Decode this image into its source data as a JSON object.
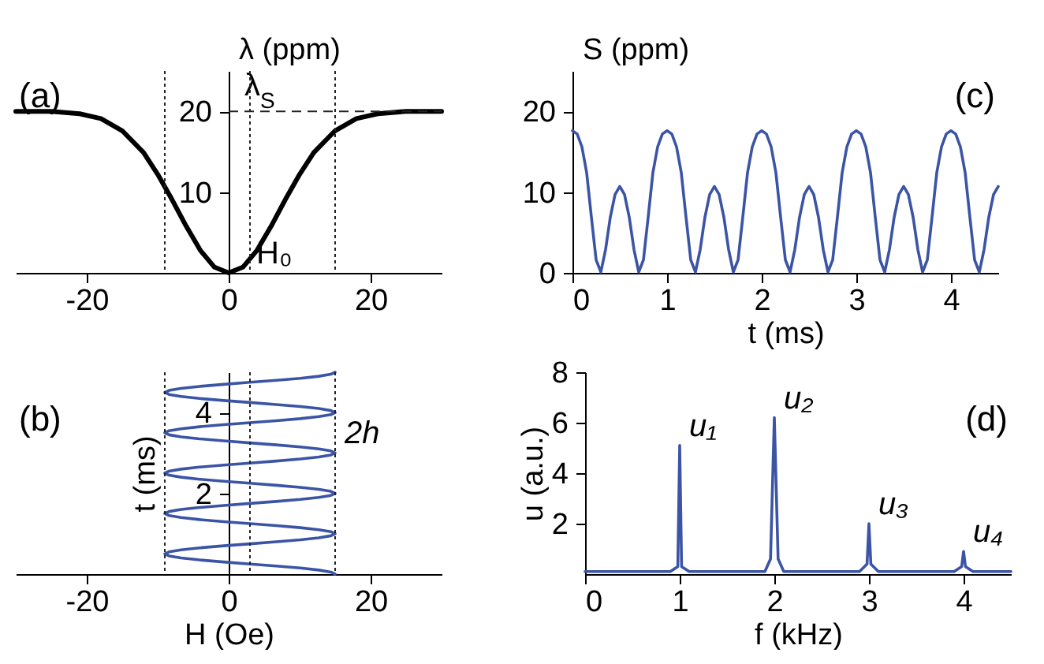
{
  "chart_data": [
    {
      "type": "line",
      "title": "(a)",
      "ylabel": "λ (ppm)",
      "xlim": [
        -30,
        30
      ],
      "ylim": [
        0,
        25
      ],
      "xticks": [
        -20,
        0,
        20
      ],
      "yticks": [
        10,
        20
      ],
      "x": [
        -30,
        -25,
        -21,
        -18,
        -15,
        -12,
        -10,
        -8,
        -6,
        -4,
        -2,
        0,
        2,
        4,
        6,
        8,
        10,
        12,
        15,
        18,
        21,
        25,
        30
      ],
      "series": [
        {
          "color": "#000000",
          "values": [
            20,
            20,
            19.7,
            19.1,
            17.6,
            14.9,
            12.2,
            9.1,
            5.8,
            2.8,
            0.7,
            0,
            0.7,
            2.8,
            5.8,
            9.1,
            12.2,
            14.9,
            17.6,
            19.1,
            19.7,
            20,
            20
          ]
        }
      ],
      "ref_lines": [
        {
          "axis": "y",
          "value": 20,
          "label": "λ$_{S}$",
          "line_style": "dashed"
        },
        {
          "axis": "x",
          "value": -9,
          "line_style": "dotted"
        },
        {
          "axis": "x",
          "value": 3,
          "label": "H₀",
          "line_style": "dotted"
        },
        {
          "axis": "x",
          "value": 15,
          "line_style": "dotted"
        }
      ]
    },
    {
      "type": "line",
      "title": "(c)",
      "xlabel": "t (ms)",
      "ylabel": "S (ppm)",
      "xlim": [
        0,
        4.5
      ],
      "ylim": [
        0,
        25
      ],
      "xticks": [
        0,
        1,
        2,
        3,
        4
      ],
      "yticks": [
        0,
        10,
        20
      ],
      "x": [
        0,
        0.05,
        0.1,
        0.15,
        0.2,
        0.25,
        0.3,
        0.35,
        0.4,
        0.45,
        0.5,
        0.55,
        0.6,
        0.65,
        0.7,
        0.75,
        0.8,
        0.85,
        0.9,
        0.95,
        1,
        1.05,
        1.1,
        1.15,
        1.2,
        1.25,
        1.3,
        1.35,
        1.4,
        1.45,
        1.5,
        1.55,
        1.6,
        1.65,
        1.7,
        1.75,
        1.8,
        1.85,
        1.9,
        1.95,
        2,
        2.05,
        2.1,
        2.15,
        2.2,
        2.25,
        2.3,
        2.35,
        2.4,
        2.45,
        2.5,
        2.55,
        2.6,
        2.65,
        2.7,
        2.75,
        2.8,
        2.85,
        2.9,
        2.95,
        3,
        3.05,
        3.1,
        3.15,
        3.2,
        3.25,
        3.3,
        3.35,
        3.4,
        3.45,
        3.5,
        3.55,
        3.6,
        3.65,
        3.7,
        3.75,
        3.8,
        3.85,
        3.9,
        3.95,
        4,
        4.05,
        4.1,
        4.15,
        4.2,
        4.25,
        4.3,
        4.35,
        4.4,
        4.45,
        4.5
      ],
      "series": [
        {
          "color": "#3b54a5",
          "values": [
            17.6,
            17.2,
            15.6,
            12.4,
            6.9,
            1.6,
            0.1,
            2.9,
            6.9,
            9.7,
            10.7,
            9.7,
            6.9,
            2.9,
            0.1,
            1.6,
            6.9,
            12.4,
            15.6,
            17.2,
            17.6,
            17.2,
            15.6,
            12.4,
            6.9,
            1.6,
            0.1,
            2.9,
            6.9,
            9.7,
            10.7,
            9.7,
            6.9,
            2.9,
            0.1,
            1.6,
            6.9,
            12.4,
            15.6,
            17.2,
            17.6,
            17.2,
            15.6,
            12.4,
            6.9,
            1.6,
            0.1,
            2.9,
            6.9,
            9.7,
            10.7,
            9.7,
            6.9,
            2.9,
            0.1,
            1.6,
            6.9,
            12.4,
            15.6,
            17.2,
            17.6,
            17.2,
            15.6,
            12.4,
            6.9,
            1.6,
            0.1,
            2.9,
            6.9,
            9.7,
            10.7,
            9.7,
            6.9,
            2.9,
            0.1,
            1.6,
            6.9,
            12.4,
            15.6,
            17.2,
            17.6,
            17.2,
            15.6,
            12.4,
            6.9,
            1.6,
            0.1,
            2.9,
            6.9,
            9.7,
            10.7
          ]
        }
      ]
    },
    {
      "type": "line",
      "title": "(b)",
      "xlabel": "H (Oe)",
      "ylabel": "t (ms)",
      "xlim": [
        -30,
        30
      ],
      "ylim": [
        0,
        5
      ],
      "xticks": [
        -20,
        0,
        20
      ],
      "yticks": [
        2,
        4
      ],
      "x": [
        15,
        14.4,
        12.7,
        10.1,
        6.7,
        3,
        -0.7,
        -4.1,
        -6.7,
        -8.4,
        -9,
        -8.4,
        -6.7,
        -4.1,
        -0.7,
        3,
        6.7,
        10.1,
        12.7,
        14.4,
        15,
        14.4,
        12.7,
        10.1,
        6.7,
        3,
        -0.7,
        -4.1,
        -6.7,
        -8.4,
        -9,
        -8.4,
        -6.7,
        -4.1,
        -0.7,
        3,
        6.7,
        10.1,
        12.7,
        14.4,
        15,
        14.4,
        12.7,
        10.1,
        6.7,
        3,
        -0.7,
        -4.1,
        -6.7,
        -8.4,
        -9,
        -8.4,
        -6.7,
        -4.1,
        -0.7,
        3,
        6.7,
        10.1,
        12.7,
        14.4,
        15,
        14.4,
        12.7,
        10.1,
        6.7,
        3,
        -0.7,
        -4.1,
        -6.7,
        -8.4,
        -9,
        -8.4,
        -6.7,
        -4.1,
        -0.7,
        3,
        6.7,
        10.1,
        12.7,
        14.4,
        15,
        14.4,
        12.7,
        10.1,
        6.7,
        3,
        -0.7,
        -4.1,
        -6.7,
        -8.4,
        -9,
        -8.4,
        -6.7,
        -4.1,
        -0.7,
        3,
        6.7,
        10.1,
        12.7,
        14.4,
        15
      ],
      "series": [
        {
          "color": "#3b54a5",
          "values": [
            0,
            0.05,
            0.1,
            0.15,
            0.2,
            0.25,
            0.3,
            0.35,
            0.4,
            0.45,
            0.5,
            0.55,
            0.6,
            0.65,
            0.7,
            0.75,
            0.8,
            0.85,
            0.9,
            0.95,
            1,
            1.05,
            1.1,
            1.15,
            1.2,
            1.25,
            1.3,
            1.35,
            1.4,
            1.45,
            1.5,
            1.55,
            1.6,
            1.65,
            1.7,
            1.75,
            1.8,
            1.85,
            1.9,
            1.95,
            2,
            2.05,
            2.1,
            2.15,
            2.2,
            2.25,
            2.3,
            2.35,
            2.4,
            2.45,
            2.5,
            2.55,
            2.6,
            2.65,
            2.7,
            2.75,
            2.8,
            2.85,
            2.9,
            2.95,
            3,
            3.05,
            3.1,
            3.15,
            3.2,
            3.25,
            3.3,
            3.35,
            3.4,
            3.45,
            3.5,
            3.55,
            3.6,
            3.65,
            3.7,
            3.75,
            3.8,
            3.85,
            3.9,
            3.95,
            4,
            4.05,
            4.1,
            4.15,
            4.2,
            4.25,
            4.3,
            4.35,
            4.4,
            4.45,
            4.5,
            4.55,
            4.6,
            4.65,
            4.7,
            4.75,
            4.8,
            4.85,
            4.9,
            4.95,
            5
          ]
        }
      ],
      "ref_lines": [
        {
          "axis": "x",
          "value": -9,
          "line_style": "dotted"
        },
        {
          "axis": "x",
          "value": 3,
          "line_style": "dotted"
        },
        {
          "axis": "x",
          "value": 15,
          "line_style": "dotted"
        }
      ],
      "annotations": [
        {
          "text": "2h",
          "x": 15,
          "y": 3
        }
      ]
    },
    {
      "type": "line",
      "title": "(d)",
      "xlabel": "f (kHz)",
      "ylabel": "u (a.u.)",
      "xlim": [
        0,
        4.5
      ],
      "ylim": [
        0,
        8
      ],
      "xticks": [
        0,
        1,
        2,
        3,
        4
      ],
      "yticks": [
        2,
        4,
        6,
        8
      ],
      "x": [
        0,
        0.9,
        0.98,
        1,
        1.02,
        1.1,
        1.9,
        1.96,
        2,
        2.04,
        2.1,
        2.9,
        2.98,
        3,
        3.02,
        3.1,
        3.9,
        3.98,
        4,
        4.02,
        4.1,
        4.5
      ],
      "series": [
        {
          "color": "#3b54a5",
          "values": [
            0.1,
            0.1,
            0.3,
            5.1,
            0.3,
            0.1,
            0.1,
            0.6,
            6.2,
            0.6,
            0.1,
            0.1,
            0.4,
            2,
            0.4,
            0.1,
            0.1,
            0.3,
            0.9,
            0.3,
            0.1,
            0.1
          ]
        }
      ],
      "annotations": [
        {
          "text": "u₁",
          "x": 1,
          "y": 5.1
        },
        {
          "text": "u₂",
          "x": 2,
          "y": 6.2
        },
        {
          "text": "u₃",
          "x": 3,
          "y": 2
        },
        {
          "text": "u₄",
          "x": 4,
          "y": 0.9
        }
      ]
    }
  ]
}
